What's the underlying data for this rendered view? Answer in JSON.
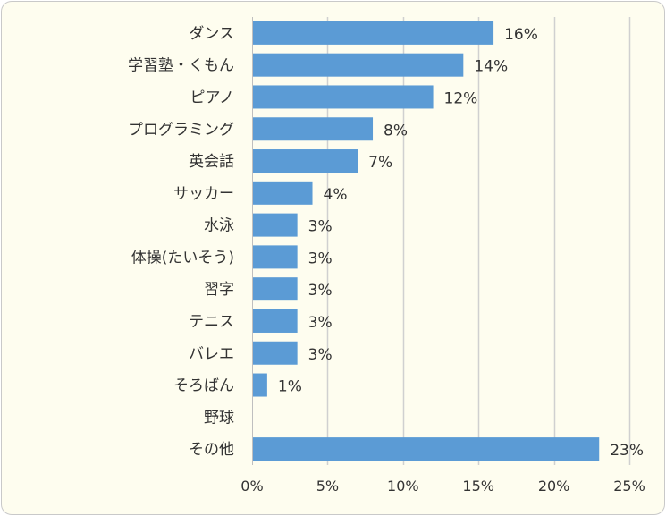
{
  "chart_data": {
    "type": "bar",
    "orientation": "horizontal",
    "categories": [
      "ダンス",
      "学習塾・くもん",
      "ピアノ",
      "プログラミング",
      "英会話",
      "サッカー",
      "水泳",
      "体操(たいそう)",
      "習字",
      "テニス",
      "バレエ",
      "そろばん",
      "野球",
      "その他"
    ],
    "values": [
      16,
      14,
      12,
      8,
      7,
      4,
      3,
      3,
      3,
      3,
      3,
      1,
      0,
      23
    ],
    "data_labels": [
      "16%",
      "14%",
      "12%",
      "8%",
      "7%",
      "4%",
      "3%",
      "3%",
      "3%",
      "3%",
      "3%",
      "1%",
      "",
      "23%"
    ],
    "x_ticks": [
      "0%",
      "5%",
      "10%",
      "15%",
      "20%",
      "25%"
    ],
    "xlim": [
      0,
      25
    ],
    "grid": true,
    "bar_color": "#5b9bd5",
    "grid_color": "#d0d0d0",
    "background_color": "#fefdef",
    "title": "",
    "xlabel": "",
    "ylabel": ""
  }
}
